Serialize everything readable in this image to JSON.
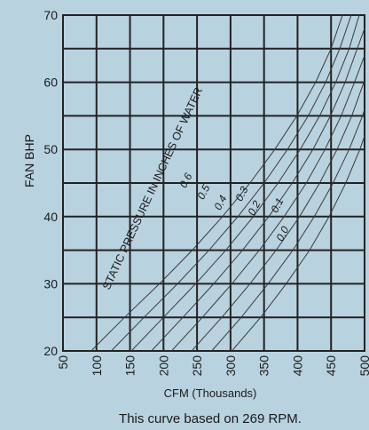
{
  "chart_data": {
    "type": "line",
    "title": "",
    "xlabel": "CFM (Thousands)",
    "ylabel": "FAN BHP",
    "caption": "This curve based on 269 RPM.",
    "annotation": "STATIC PRESSURE IN INCHES OF WATER",
    "xlim": [
      50,
      500
    ],
    "ylim": [
      20,
      70
    ],
    "x_ticks": [
      "50",
      "100",
      "150",
      "200",
      "250",
      "300",
      "350",
      "400",
      "450",
      "500"
    ],
    "y_ticks": [
      "20",
      "30",
      "40",
      "50",
      "60",
      "70"
    ],
    "grid": true,
    "series": [
      {
        "name": "0.0",
        "points": [
          [
            302,
            20
          ],
          [
            345,
            25
          ],
          [
            383,
            30
          ],
          [
            418,
            35
          ],
          [
            447,
            40
          ],
          [
            472,
            45
          ],
          [
            493,
            50
          ],
          [
            500,
            52
          ]
        ]
      },
      {
        "name": "0.1",
        "points": [
          [
            272,
            20
          ],
          [
            316,
            25
          ],
          [
            356,
            30
          ],
          [
            393,
            35
          ],
          [
            425,
            40
          ],
          [
            453,
            45
          ],
          [
            477,
            50
          ],
          [
            497,
            55
          ],
          [
            500,
            56
          ]
        ]
      },
      {
        "name": "0.2",
        "points": [
          [
            242,
            20
          ],
          [
            287,
            25
          ],
          [
            329,
            30
          ],
          [
            368,
            35
          ],
          [
            403,
            40
          ],
          [
            433,
            45
          ],
          [
            459,
            50
          ],
          [
            481,
            55
          ],
          [
            499,
            60
          ],
          [
            500,
            60
          ]
        ]
      },
      {
        "name": "0.3",
        "points": [
          [
            212,
            20
          ],
          [
            258,
            25
          ],
          [
            302,
            30
          ],
          [
            343,
            35
          ],
          [
            380,
            40
          ],
          [
            413,
            45
          ],
          [
            441,
            50
          ],
          [
            465,
            55
          ],
          [
            485,
            60
          ],
          [
            500,
            64
          ]
        ]
      },
      {
        "name": "0.4",
        "points": [
          [
            182,
            20
          ],
          [
            229,
            25
          ],
          [
            275,
            30
          ],
          [
            318,
            35
          ],
          [
            357,
            40
          ],
          [
            392,
            45
          ],
          [
            423,
            50
          ],
          [
            449,
            55
          ],
          [
            471,
            60
          ],
          [
            489,
            65
          ],
          [
            500,
            68
          ]
        ]
      },
      {
        "name": "0.5",
        "points": [
          [
            152,
            20
          ],
          [
            200,
            25
          ],
          [
            248,
            30
          ],
          [
            293,
            35
          ],
          [
            334,
            40
          ],
          [
            371,
            45
          ],
          [
            404,
            50
          ],
          [
            433,
            55
          ],
          [
            457,
            60
          ],
          [
            477,
            65
          ],
          [
            492,
            70
          ]
        ]
      },
      {
        "name": "0.6",
        "points": [
          [
            122,
            20
          ],
          [
            171,
            25
          ],
          [
            221,
            30
          ],
          [
            268,
            35
          ],
          [
            311,
            40
          ],
          [
            350,
            45
          ],
          [
            385,
            50
          ],
          [
            416,
            55
          ],
          [
            442,
            60
          ],
          [
            463,
            65
          ],
          [
            480,
            70
          ]
        ]
      },
      {
        "name": "",
        "points": [
          [
            92,
            20
          ],
          [
            142,
            25
          ],
          [
            194,
            30
          ],
          [
            243,
            35
          ],
          [
            288,
            40
          ],
          [
            329,
            45
          ],
          [
            366,
            50
          ],
          [
            399,
            55
          ],
          [
            427,
            60
          ],
          [
            450,
            65
          ],
          [
            467,
            70
          ]
        ]
      }
    ]
  }
}
